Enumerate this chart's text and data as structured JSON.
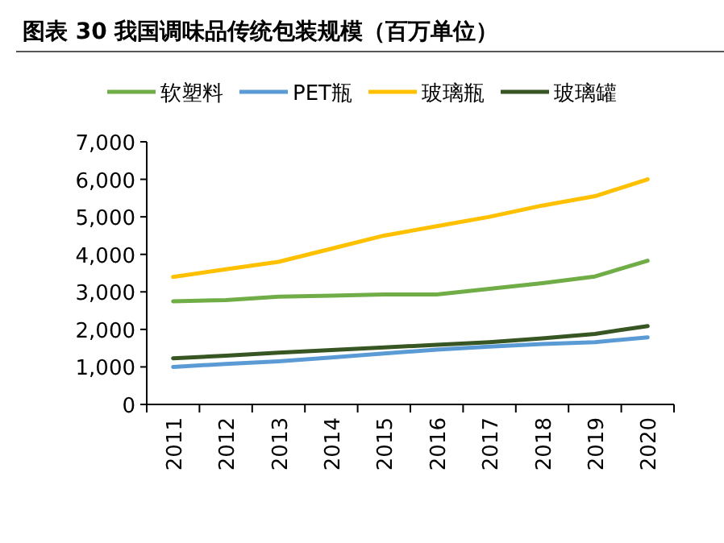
{
  "chart_data": {
    "type": "line",
    "title": "图表 30 我国调味品传统包装规模（百万单位）",
    "legend": "top",
    "categories": [
      "2011",
      "2012",
      "2013",
      "2014",
      "2015",
      "2016",
      "2017",
      "2018",
      "2019",
      "2020"
    ],
    "series": [
      {
        "name": "软塑料",
        "color": "#70ad47",
        "values": [
          2750,
          2780,
          2870,
          2900,
          2930,
          2930,
          3080,
          3230,
          3410,
          3830
        ]
      },
      {
        "name": "PET瓶",
        "color": "#5b9bd5",
        "values": [
          1000,
          1080,
          1150,
          1250,
          1360,
          1460,
          1540,
          1610,
          1660,
          1790
        ]
      },
      {
        "name": "玻璃瓶",
        "color": "#ffc000",
        "values": [
          3400,
          3600,
          3800,
          4150,
          4500,
          4750,
          5000,
          5300,
          5550,
          6000
        ]
      },
      {
        "name": "玻璃罐",
        "color": "#375623",
        "values": [
          1230,
          1300,
          1380,
          1450,
          1520,
          1590,
          1660,
          1760,
          1880,
          2090
        ]
      }
    ],
    "ylim": [
      0,
      7000
    ],
    "yticks": [
      {
        "value": 0,
        "label": "0"
      },
      {
        "value": 1000,
        "label": "1,000"
      },
      {
        "value": 2000,
        "label": "2,000"
      },
      {
        "value": 3000,
        "label": "3,000"
      },
      {
        "value": 4000,
        "label": "4,000"
      },
      {
        "value": 5000,
        "label": "5,000"
      },
      {
        "value": 6000,
        "label": "6,000"
      },
      {
        "value": 7000,
        "label": "7,000"
      }
    ]
  }
}
